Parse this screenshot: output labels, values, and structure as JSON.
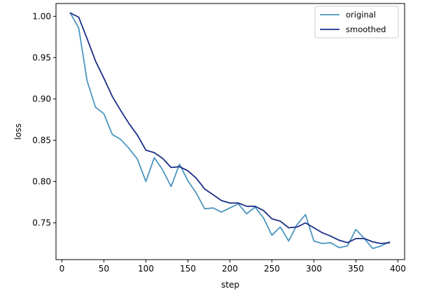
{
  "chart_data": {
    "type": "line",
    "xlabel": "step",
    "ylabel": "loss",
    "xlim": [
      -7,
      408
    ],
    "ylim": [
      0.7055,
      1.0155
    ],
    "xticks": [
      0,
      50,
      100,
      150,
      200,
      250,
      300,
      350,
      400
    ],
    "yticks": [
      0.75,
      0.8,
      0.85,
      0.9,
      0.95,
      1.0
    ],
    "ytick_labels": [
      "0.75",
      "0.80",
      "0.85",
      "0.90",
      "0.95",
      "1.00"
    ],
    "grid": false,
    "legend": "upper-right",
    "x": [
      10,
      20,
      30,
      40,
      50,
      60,
      70,
      80,
      90,
      100,
      110,
      120,
      130,
      140,
      150,
      160,
      170,
      180,
      190,
      200,
      210,
      220,
      230,
      240,
      250,
      260,
      270,
      280,
      290,
      300,
      310,
      320,
      330,
      340,
      350,
      360,
      370,
      380,
      390
    ],
    "series": [
      {
        "name": "original",
        "color": "#4c95c0",
        "values": [
          1.004,
          0.986,
          0.922,
          0.89,
          0.882,
          0.857,
          0.851,
          0.84,
          0.827,
          0.8,
          0.829,
          0.814,
          0.794,
          0.821,
          0.801,
          0.786,
          0.767,
          0.768,
          0.763,
          0.768,
          0.773,
          0.761,
          0.769,
          0.756,
          0.735,
          0.745,
          0.728,
          0.748,
          0.76,
          0.728,
          0.725,
          0.726,
          0.72,
          0.722,
          0.742,
          0.731,
          0.719,
          0.722,
          0.727
        ]
      },
      {
        "name": "smoothed",
        "color": "#1c2e85",
        "values": [
          1.004,
          0.999,
          0.973,
          0.946,
          0.925,
          0.903,
          0.886,
          0.87,
          0.856,
          0.838,
          0.835,
          0.828,
          0.817,
          0.818,
          0.813,
          0.804,
          0.791,
          0.784,
          0.777,
          0.774,
          0.774,
          0.77,
          0.77,
          0.765,
          0.755,
          0.752,
          0.744,
          0.745,
          0.75,
          0.744,
          0.738,
          0.734,
          0.729,
          0.726,
          0.731,
          0.731,
          0.727,
          0.725,
          0.726
        ]
      }
    ]
  }
}
